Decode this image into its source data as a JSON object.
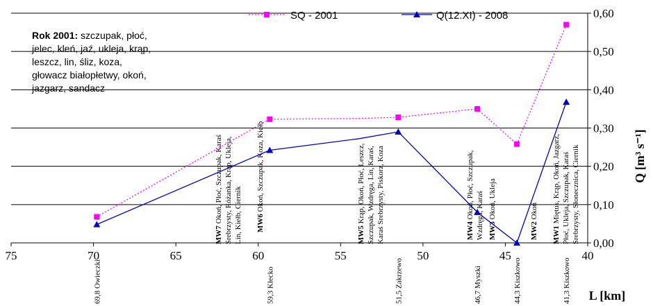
{
  "chart_data": {
    "type": "line",
    "xlabel": "L [km]",
    "ylabel": "Q [m³ s⁻¹]",
    "xlim": [
      75,
      40
    ],
    "ylim": [
      0,
      0.6
    ],
    "x_ticks": [
      "75",
      "70",
      "65",
      "60",
      "55",
      "50",
      "45",
      "40"
    ],
    "y_ticks": [
      "0,00",
      "0,10",
      "0,20",
      "0,30",
      "0,40",
      "0,50",
      "0,60"
    ],
    "grid": "horizontal",
    "legend_position": "top",
    "series": [
      {
        "name": "SQ - 2001",
        "color": "#ff00ff",
        "style": "dotted",
        "marker": "square",
        "x": [
          69.8,
          59.3,
          53.9,
          51.5,
          46.7,
          44.3,
          41.3
        ],
        "y": [
          0.068,
          0.323,
          0.325,
          0.328,
          0.35,
          0.258,
          0.57
        ]
      },
      {
        "name": "Q(12.XI) - 2008",
        "color": "#0000cc",
        "style": "solid",
        "marker": "triangle",
        "x": [
          69.8,
          59.3,
          53.9,
          51.5,
          46.7,
          44.3,
          41.3
        ],
        "y": [
          0.048,
          0.242,
          0.272,
          0.29,
          0.08,
          0.0,
          0.368
        ]
      }
    ],
    "info_box": {
      "bold": "Rok 2001:",
      "lines": [
        " szczupak, płoć,",
        "jelec, kleń, jaź, ukleja, krąp,",
        "leszcz, lin, śliz, koza,",
        "głowacz białopłetwy, okoń,",
        "jazgarz, sandacz"
      ]
    },
    "stations": [
      {
        "x": 69.8,
        "label": "69,8 Owieczki"
      },
      {
        "x": 59.3,
        "label": "59,3 Kłecko"
      },
      {
        "x": 51.5,
        "label": "51,5 Zakrzewo"
      },
      {
        "x": 46.7,
        "label": "46,7 Myszki"
      },
      {
        "x": 44.3,
        "label": "44,3 Kiszkowo"
      },
      {
        "x": 41.3,
        "label": "41,3 Kiszkowo"
      }
    ],
    "sites": [
      {
        "code": "MW7",
        "lines": [
          " Okoń, Płoć, Szczupak, Karaś",
          "Srebrzysty, Różanka, Krąp, Ukleja,",
          "Lin, Kiełb, Ciernik"
        ]
      },
      {
        "code": "MW6",
        "lines": [
          " Okoń, Szczupak, Koza, Kiełb"
        ]
      },
      {
        "code": "MW5",
        "lines": [
          " Krąp, Okoń, Płoć, Leszcz,",
          "Szczupak, Wzdręga, Lin, Karaś,",
          "Karaś Srebrzysty, Piskorz, Koza"
        ]
      },
      {
        "code": "MW4",
        "lines": [
          " Okoń, Płoć, Szczupak,",
          "Wzdręga, Karaś"
        ]
      },
      {
        "code": "MW3",
        "lines": [
          " Okoń, Ukleja"
        ]
      },
      {
        "code": "MW2",
        "lines": [
          " Okoń"
        ]
      },
      {
        "code": "MW1",
        "lines": [
          " Miętus, Krąp, Okoń, Jazgarz,",
          "Płoć, Ukleja, Szczupak, Karaś",
          "Srebrzysty, Słonecznica, Ciernik"
        ]
      }
    ]
  }
}
